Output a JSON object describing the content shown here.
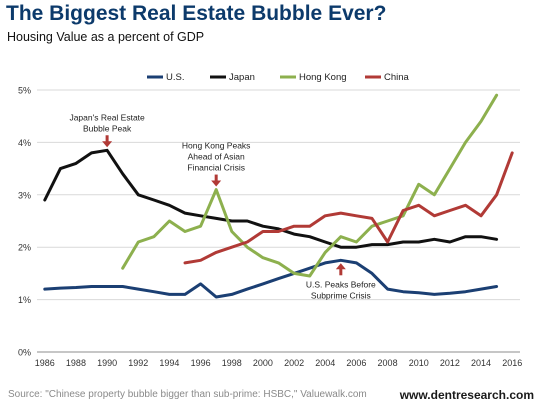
{
  "header": {
    "title": "The Biggest Real Estate Bubble Ever?",
    "subtitle": "Housing Value as a percent of GDP"
  },
  "footer": {
    "source": "Source: \"Chinese property bubble bigger than sub-prime: HSBC,\" Valuewalk.com",
    "site": "www.dentresearch.com"
  },
  "chart_data": {
    "type": "line",
    "title": "The Biggest Real Estate Bubble Ever?",
    "subtitle": "Housing Value as a percent of GDP",
    "xlabel": "",
    "ylabel": "",
    "xlim": [
      1985.5,
      2016.5
    ],
    "ylim": [
      0,
      5
    ],
    "xticks": [
      "1986",
      "1988",
      "1990",
      "1992",
      "1994",
      "1996",
      "1998",
      "2000",
      "2002",
      "2004",
      "2006",
      "2008",
      "2010",
      "2012",
      "2014",
      "2016"
    ],
    "yticks": [
      "0%",
      "1%",
      "2%",
      "3%",
      "4%",
      "5%"
    ],
    "grid": "horizontal",
    "legend_position": "top",
    "series": [
      {
        "name": "U.S.",
        "color": "#1b3f73",
        "x": [
          1986,
          1987,
          1988,
          1989,
          1990,
          1991,
          1992,
          1993,
          1994,
          1995,
          1996,
          1997,
          1998,
          1999,
          2000,
          2001,
          2002,
          2003,
          2004,
          2005,
          2006,
          2007,
          2008,
          2009,
          2010,
          2011,
          2012,
          2013,
          2014,
          2015
        ],
        "values": [
          1.2,
          1.22,
          1.23,
          1.25,
          1.25,
          1.25,
          1.2,
          1.15,
          1.1,
          1.1,
          1.3,
          1.05,
          1.1,
          1.2,
          1.3,
          1.4,
          1.5,
          1.6,
          1.7,
          1.75,
          1.7,
          1.5,
          1.2,
          1.15,
          1.13,
          1.1,
          1.12,
          1.15,
          1.2,
          1.25
        ]
      },
      {
        "name": "Japan",
        "color": "#111111",
        "x": [
          1986,
          1987,
          1988,
          1989,
          1990,
          1991,
          1992,
          1993,
          1994,
          1995,
          1996,
          1997,
          1998,
          1999,
          2000,
          2001,
          2002,
          2003,
          2004,
          2005,
          2006,
          2007,
          2008,
          2009,
          2010,
          2011,
          2012,
          2013,
          2014,
          2015
        ],
        "values": [
          2.9,
          3.5,
          3.6,
          3.8,
          3.85,
          3.4,
          3.0,
          2.9,
          2.8,
          2.65,
          2.6,
          2.55,
          2.5,
          2.5,
          2.4,
          2.35,
          2.25,
          2.2,
          2.1,
          2.0,
          2.0,
          2.05,
          2.05,
          2.1,
          2.1,
          2.15,
          2.1,
          2.2,
          2.2,
          2.15
        ]
      },
      {
        "name": "Hong Kong",
        "color": "#8db04e",
        "x": [
          1991,
          1992,
          1993,
          1994,
          1995,
          1996,
          1997,
          1998,
          1999,
          2000,
          2001,
          2002,
          2003,
          2004,
          2005,
          2006,
          2007,
          2008,
          2009,
          2010,
          2011,
          2012,
          2013,
          2014,
          2015
        ],
        "values": [
          1.6,
          2.1,
          2.2,
          2.5,
          2.3,
          2.4,
          3.1,
          2.3,
          2.0,
          1.8,
          1.7,
          1.5,
          1.45,
          1.9,
          2.2,
          2.1,
          2.4,
          2.5,
          2.6,
          3.2,
          3.0,
          3.5,
          4.0,
          4.4,
          4.9
        ]
      },
      {
        "name": "China",
        "color": "#b13a36",
        "x": [
          1995,
          1996,
          1997,
          1998,
          1999,
          2000,
          2001,
          2002,
          2003,
          2004,
          2005,
          2006,
          2007,
          2008,
          2009,
          2010,
          2011,
          2012,
          2013,
          2014,
          2015,
          2016
        ],
        "values": [
          1.7,
          1.75,
          1.9,
          2.0,
          2.1,
          2.3,
          2.3,
          2.4,
          2.4,
          2.6,
          2.65,
          2.6,
          2.55,
          2.1,
          2.7,
          2.8,
          2.6,
          2.7,
          2.8,
          2.6,
          3.0,
          3.8
        ]
      }
    ],
    "annotations": [
      {
        "text": [
          "Japan's Real Estate",
          "Bubble Peak"
        ],
        "x": 1990,
        "y": 3.85,
        "arrow": "down",
        "color": "#b13a36"
      },
      {
        "text": [
          "Hong Kong Peaks",
          "Ahead of Asian",
          "Financial Crisis"
        ],
        "x": 1997,
        "y": 3.1,
        "arrow": "down",
        "color": "#b13a36"
      },
      {
        "text": [
          "U.S. Peaks Before",
          "Subprime Crisis"
        ],
        "x": 2005,
        "y": 1.75,
        "arrow": "up",
        "color": "#b13a36"
      }
    ]
  }
}
